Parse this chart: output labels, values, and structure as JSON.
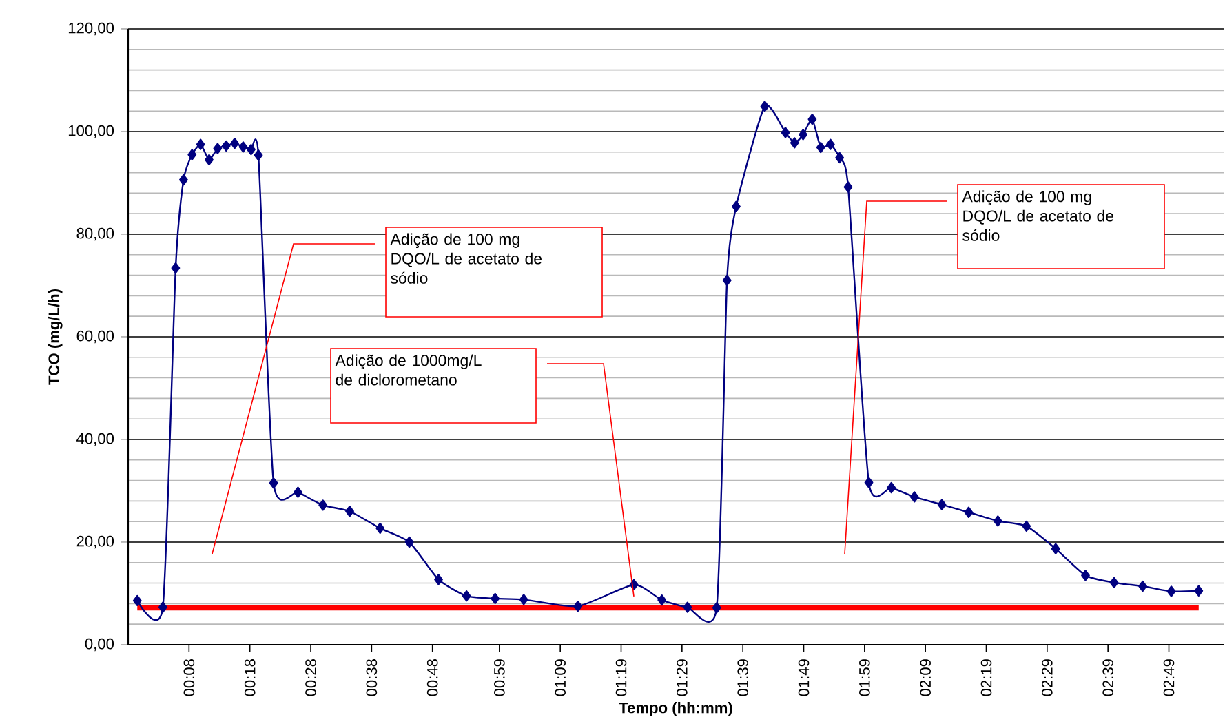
{
  "chart_data": {
    "type": "line",
    "xlabel": "Tempo (hh:mm)",
    "ylabel": "TCO (mg/L/h)",
    "xlim": [
      -2,
      178
    ],
    "ylim": [
      0,
      120
    ],
    "xticks": [
      {
        "value": 8,
        "label": "00:08"
      },
      {
        "value": 18,
        "label": "00:18"
      },
      {
        "value": 28,
        "label": "00:28"
      },
      {
        "value": 38,
        "label": "00:38"
      },
      {
        "value": 48,
        "label": "00:48"
      },
      {
        "value": 59,
        "label": "00:59"
      },
      {
        "value": 69,
        "label": "01:09"
      },
      {
        "value": 79,
        "label": "01:19"
      },
      {
        "value": 89,
        "label": "01:29"
      },
      {
        "value": 99,
        "label": "01:39"
      },
      {
        "value": 109,
        "label": "01:49"
      },
      {
        "value": 119,
        "label": "01:59"
      },
      {
        "value": 129,
        "label": "02:09"
      },
      {
        "value": 139,
        "label": "02:19"
      },
      {
        "value": 149,
        "label": "02:29"
      },
      {
        "value": 159,
        "label": "02:39"
      },
      {
        "value": 169,
        "label": "02:49"
      }
    ],
    "yticks": [
      {
        "value": 0,
        "label": "0,00"
      },
      {
        "value": 20,
        "label": "20,00"
      },
      {
        "value": 40,
        "label": "40,00"
      },
      {
        "value": 60,
        "label": "60,00"
      },
      {
        "value": 80,
        "label": "80,00"
      },
      {
        "value": 100,
        "label": "100,00"
      },
      {
        "value": 120,
        "label": "120,00"
      }
    ],
    "x": [
      -0.5,
      3.7,
      5.8,
      7.1,
      8.5,
      9.9,
      11.3,
      12.7,
      14.1,
      15.5,
      16.9,
      18.2,
      19.4,
      21.9,
      25.9,
      30.0,
      34.4,
      39.4,
      44.2,
      49.0,
      53.6,
      58.3,
      63.0,
      71.9,
      81.1,
      85.7,
      89.9,
      94.7,
      96.4,
      97.9,
      102.6,
      106.0,
      107.5,
      108.9,
      110.4,
      111.8,
      113.4,
      114.9,
      116.3,
      119.7,
      123.4,
      127.2,
      131.7,
      136.1,
      140.9,
      145.6,
      150.4,
      155.3,
      160.0,
      164.7,
      169.4,
      173.9
    ],
    "series": [
      {
        "color": "#000080",
        "values": [
          8.6,
          7.3,
          73.4,
          90.6,
          95.5,
          97.5,
          94.5,
          96.7,
          97.2,
          97.7,
          97.0,
          96.5,
          95.4,
          31.5,
          29.7,
          27.2,
          26.0,
          22.7,
          20.0,
          12.7,
          9.5,
          9.0,
          8.8,
          7.5,
          11.7,
          8.7,
          7.3,
          7.2,
          71.0,
          85.4,
          104.9,
          99.8,
          97.8,
          99.4,
          102.4,
          96.9,
          97.5,
          94.9,
          89.2,
          31.6,
          30.6,
          28.8,
          27.3,
          25.8,
          24.1,
          23.1,
          18.7,
          13.5,
          12.1,
          11.4,
          10.4,
          10.5
        ]
      }
    ],
    "marker": "diamond",
    "line_style": "solid",
    "grid": "y",
    "ref_lines": [
      {
        "axis": "y",
        "value": 7.2,
        "color": "#ff0000"
      }
    ],
    "annotations": [
      "Adição de 100 mg DQO/L de acetato de sódio",
      "Adição de 1000mg/L de diclorometano",
      "Adição de 100 mg DQO/L de acetato de sódio"
    ]
  }
}
